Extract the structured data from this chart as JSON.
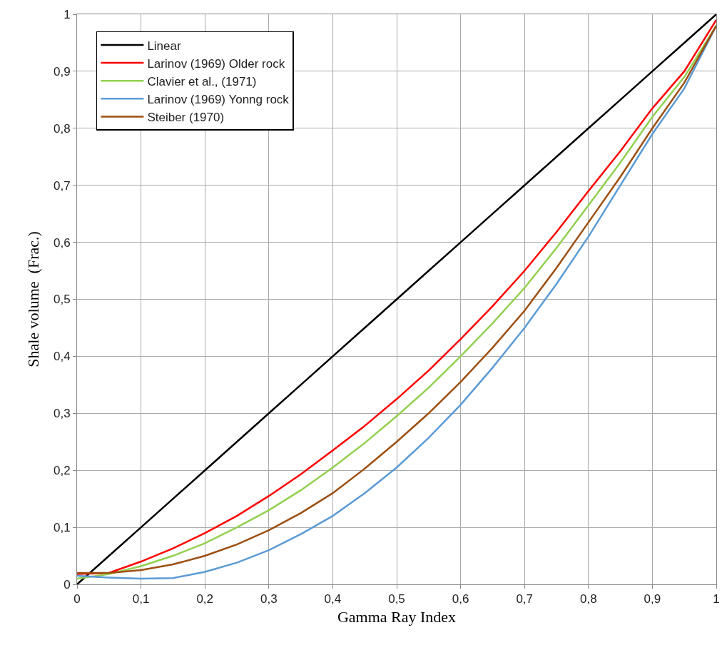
{
  "chart_data": {
    "type": "line",
    "xlabel": "Gamma Ray Index",
    "ylabel": "Shale volume  (Frac.)",
    "legend": "top left",
    "grid": true,
    "marker": "none",
    "line_style": "solid",
    "xlim": [
      0,
      1
    ],
    "ylim": [
      0,
      1
    ],
    "xticks": [
      0,
      {
        "value": 0.1,
        "label": "0,1"
      },
      {
        "value": 0.2,
        "label": "0,2"
      },
      {
        "value": 0.3,
        "label": "0,3"
      },
      {
        "value": 0.4,
        "label": "0,4"
      },
      {
        "value": 0.5,
        "label": "0,5"
      },
      {
        "value": 0.6,
        "label": "0,6"
      },
      {
        "value": 0.7,
        "label": "0,7"
      },
      {
        "value": 0.8,
        "label": "0,8"
      },
      {
        "value": 0.9,
        "label": "0,9"
      },
      1
    ],
    "yticks": [
      0,
      {
        "value": 0.1,
        "label": "0,1"
      },
      {
        "value": 0.2,
        "label": "0,2"
      },
      {
        "value": 0.3,
        "label": "0,3"
      },
      {
        "value": 0.4,
        "label": "0,4"
      },
      {
        "value": 0.5,
        "label": "0,5"
      },
      {
        "value": 0.6,
        "label": "0,6"
      },
      {
        "value": 0.7,
        "label": "0,7"
      },
      {
        "value": 0.8,
        "label": "0,8"
      },
      {
        "value": 0.9,
        "label": "0,9"
      },
      1
    ],
    "x": [
      0,
      0.05,
      0.1,
      0.15,
      0.2,
      0.25,
      0.3,
      0.35,
      0.4,
      0.45,
      0.5,
      0.55,
      0.6,
      0.65,
      0.7,
      0.75,
      0.8,
      0.85,
      0.9,
      0.95,
      1
    ],
    "series": [
      {
        "name": "Linear",
        "color": "#000000",
        "values": [
          0,
          0.05,
          0.1,
          0.15,
          0.2,
          0.25,
          0.3,
          0.35,
          0.4,
          0.45,
          0.5,
          0.55,
          0.6,
          0.65,
          0.7,
          0.75,
          0.8,
          0.85,
          0.9,
          0.95,
          1
        ]
      },
      {
        "name": "Larinov (1969) Older rock",
        "color": "#ff0000",
        "values": [
          0.018,
          0.02,
          0.04,
          0.063,
          0.09,
          0.12,
          0.155,
          0.193,
          0.235,
          0.278,
          0.325,
          0.375,
          0.43,
          0.488,
          0.55,
          0.618,
          0.69,
          0.76,
          0.835,
          0.9,
          0.99
        ]
      },
      {
        "name": "Clavier et al., (1971)",
        "color": "#92d050",
        "values": [
          0.01,
          0.018,
          0.032,
          0.05,
          0.072,
          0.1,
          0.13,
          0.165,
          0.205,
          0.248,
          0.295,
          0.345,
          0.4,
          0.458,
          0.52,
          0.59,
          0.665,
          0.74,
          0.82,
          0.89,
          0.98
        ]
      },
      {
        "name": "Larinov (1969) Yonng rock",
        "color": "#5b9bd5",
        "values": [
          0.015,
          0.012,
          0.01,
          0.011,
          0.022,
          0.038,
          0.06,
          0.088,
          0.12,
          0.16,
          0.205,
          0.257,
          0.315,
          0.38,
          0.45,
          0.527,
          0.61,
          0.7,
          0.79,
          0.87,
          0.98
        ]
      },
      {
        "name": "Steiber (1970)",
        "color": "#9c4f12",
        "values": [
          0.02,
          0.02,
          0.025,
          0.035,
          0.05,
          0.07,
          0.095,
          0.125,
          0.16,
          0.203,
          0.25,
          0.3,
          0.355,
          0.415,
          0.48,
          0.555,
          0.635,
          0.715,
          0.8,
          0.88,
          0.98
        ]
      }
    ]
  }
}
